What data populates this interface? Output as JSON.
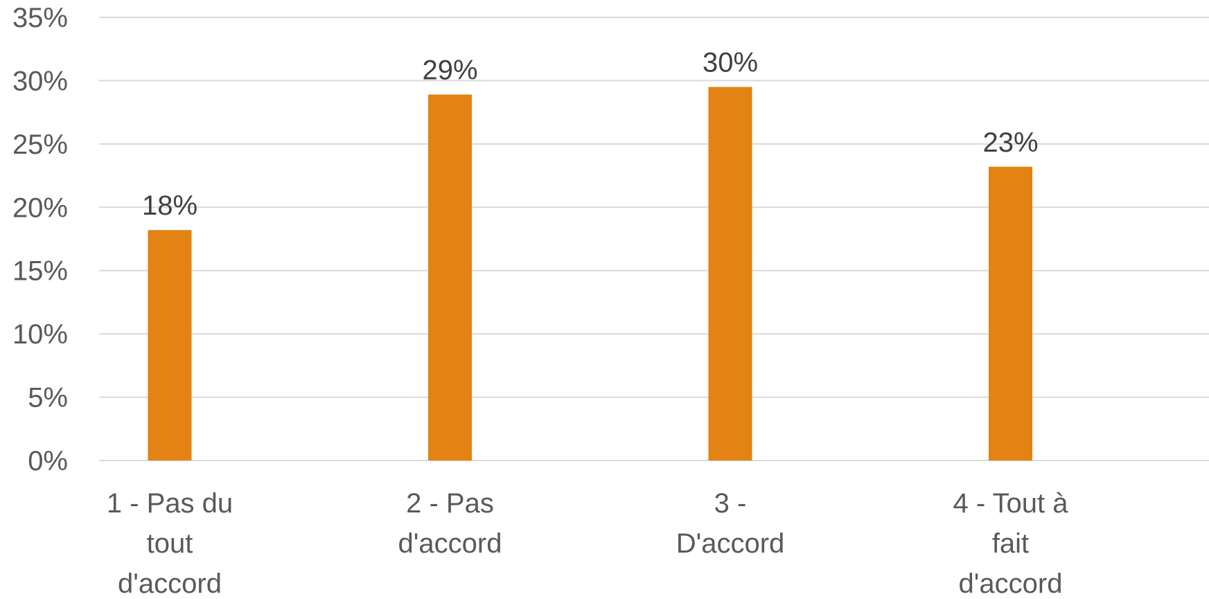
{
  "chart_data": {
    "type": "bar",
    "categories": [
      [
        "1 - Pas du",
        "tout",
        "d'accord"
      ],
      [
        "2 - Pas",
        "d'accord"
      ],
      [
        "3 -",
        "D'accord"
      ],
      [
        "4 - Tout à",
        "fait",
        "d'accord"
      ]
    ],
    "values": [
      18.2,
      28.9,
      29.5,
      23.2
    ],
    "data_labels": [
      "18%",
      "29%",
      "30%",
      "23%"
    ],
    "ylim": [
      0,
      35
    ],
    "y_ticks": [
      0,
      5,
      10,
      15,
      20,
      25,
      30,
      35
    ],
    "y_tick_labels": [
      "0%",
      "5%",
      "10%",
      "15%",
      "20%",
      "25%",
      "30%",
      "35%"
    ],
    "grid": true,
    "legend": "none",
    "title": "",
    "xlabel": "",
    "ylabel": "",
    "colors": {
      "bar": "#E38313",
      "grid": "#D9D9D9",
      "tick_text": "#595959",
      "data_label_text": "#404040"
    }
  }
}
